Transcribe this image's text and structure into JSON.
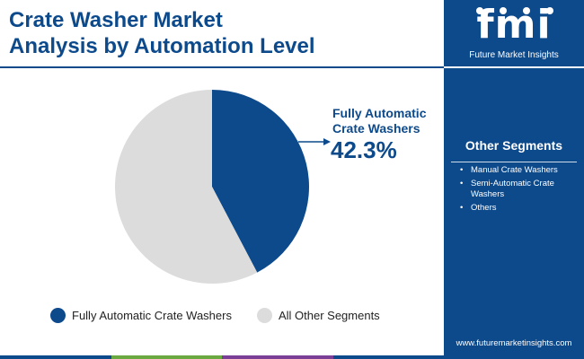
{
  "title_line1": "Crate Washer Market",
  "title_line2": "Analysis by Automation Level",
  "colors": {
    "primary": "#0d4a8c",
    "other": "#dcdcdc",
    "bar": [
      "#0d4a8c",
      "#6aa842",
      "#7b3f98",
      "#0d4a8c"
    ]
  },
  "chart_data": {
    "type": "pie",
    "title": "Crate Washer Market Analysis by Automation Level",
    "slices": [
      {
        "label": "Fully Automatic Crate Washers",
        "value": 42.3,
        "color": "#0d4a8c"
      },
      {
        "label": "All Other Segments",
        "value": 57.7,
        "color": "#dcdcdc"
      }
    ],
    "callout": {
      "label": "Fully Automatic Crate Washers",
      "value_text": "42.3%"
    },
    "legend_position": "bottom"
  },
  "legend": [
    {
      "label": "Fully Automatic Crate Washers",
      "color": "#0d4a8c"
    },
    {
      "label": "All Other Segments",
      "color": "#dcdcdc"
    }
  ],
  "sidebar": {
    "logo_text": "fmi",
    "logo_subtitle": "Future Market Insights",
    "other_segments_title": "Other Segments",
    "other_segments": [
      "Manual Crate Washers",
      "Semi-Automatic Crate Washers",
      "Others"
    ],
    "website": "www.futuremarketinsights.com"
  }
}
